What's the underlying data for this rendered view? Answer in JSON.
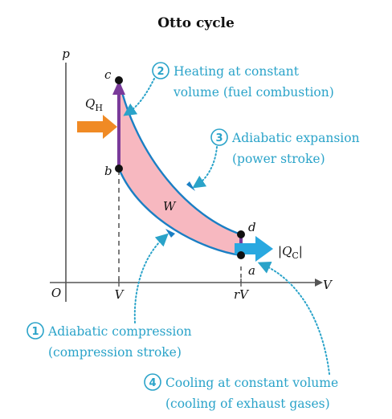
{
  "title": "Otto cycle",
  "axes": {
    "y_label": "p",
    "x_label": "V",
    "origin": "O"
  },
  "ticks": {
    "v": "V",
    "rv": "rV"
  },
  "points": {
    "a": "a",
    "b": "b",
    "c": "c",
    "d": "d"
  },
  "work_label": "W",
  "heat_in": {
    "symbol": "Q",
    "subscript": "H"
  },
  "heat_out": {
    "bar_left": "|",
    "symbol": "Q",
    "subscript": "C",
    "bar_right": "|"
  },
  "annotations": [
    {
      "number": "2",
      "line1": "Heating at constant",
      "line2": "volume (fuel combustion)"
    },
    {
      "number": "3",
      "line1": "Adiabatic expansion",
      "line2": "(power stroke)"
    },
    {
      "number": "1",
      "line1": "Adiabatic compression",
      "line2": "(compression stroke)"
    },
    {
      "number": "4",
      "line1": "Cooling at constant volume",
      "line2": "(cooling of exhaust gases)"
    }
  ],
  "colors": {
    "curve": "#1a7fc4",
    "fill": "#f7b8c0",
    "heat_in_arrow": "#f08a24",
    "heat_out_arrow": "#29a8e0",
    "vertical_segments": "#7a3a9a",
    "annotation_text": "#2aa3c9",
    "points": "#111111"
  }
}
